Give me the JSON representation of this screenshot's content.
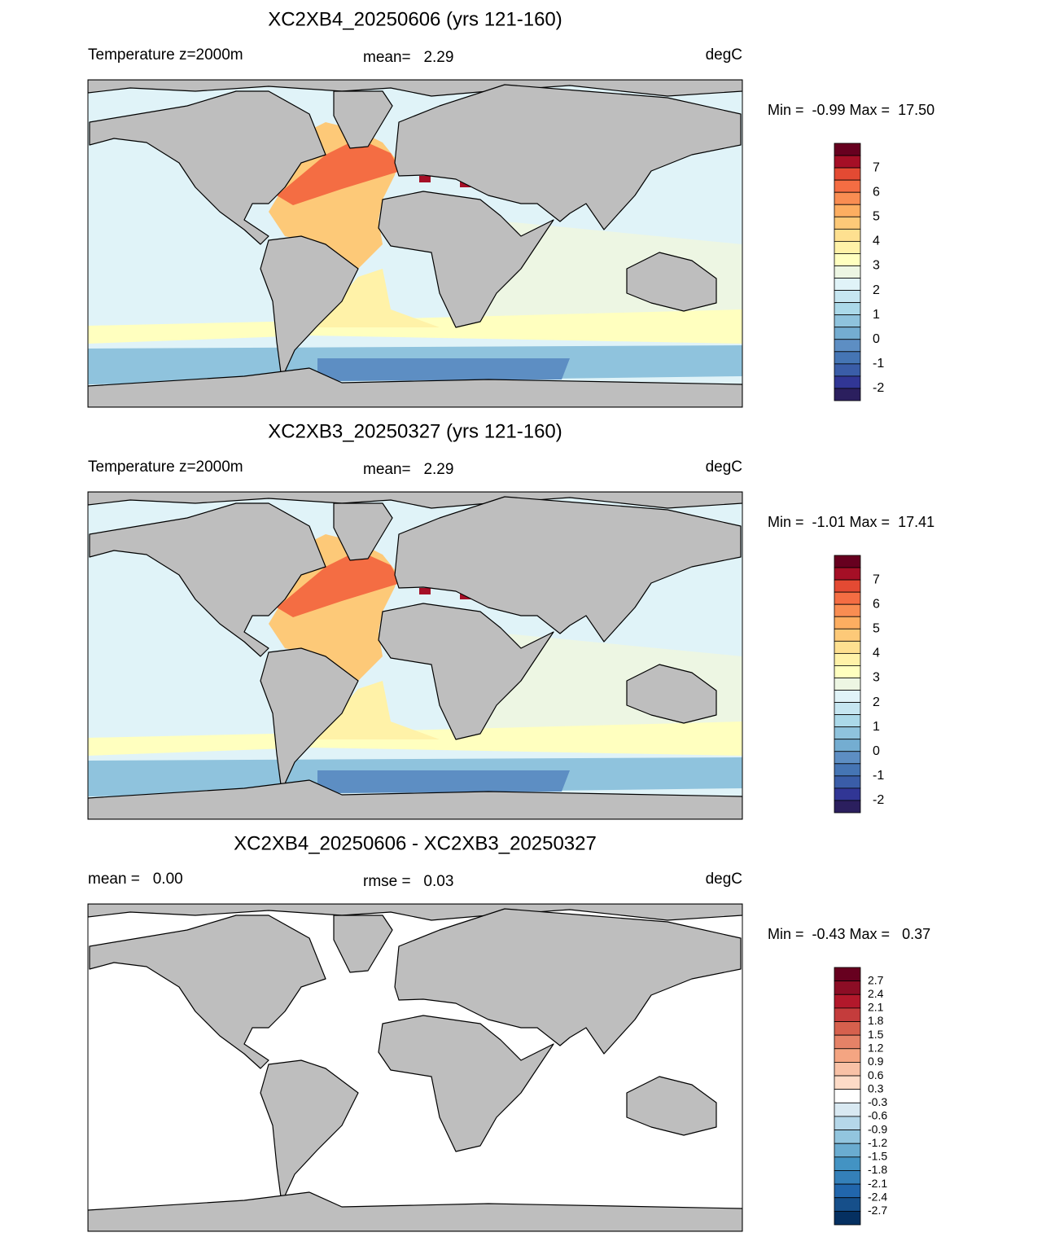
{
  "panels": [
    {
      "title": "XC2XB4_20250606 (yrs 121-160)",
      "left_label": "Temperature z=2000m",
      "center_label": "mean=   2.29",
      "units": "degC",
      "range_label": "Min =  -0.99 Max =  17.50",
      "ocean": "temperature",
      "colorbar": {
        "colors": [
          "#67001f",
          "#a50f26",
          "#e34a33",
          "#f46d43",
          "#f98d52",
          "#fdae61",
          "#fdc978",
          "#fee090",
          "#fff2a8",
          "#ffffbf",
          "#edf6e3",
          "#e0f3f8",
          "#c6e6f1",
          "#abd9e9",
          "#8fc3dd",
          "#74add1",
          "#5d8ec3",
          "#4575b4",
          "#3a5da8",
          "#313695",
          "#2b1f5e"
        ],
        "ticks": [
          7,
          6,
          5,
          4,
          3,
          2,
          1,
          0,
          -1,
          -2
        ]
      }
    },
    {
      "title": "XC2XB3_20250327 (yrs 121-160)",
      "left_label": "Temperature z=2000m",
      "center_label": "mean=   2.29",
      "units": "degC",
      "range_label": "Min =  -1.01 Max =  17.41",
      "ocean": "temperature",
      "colorbar": {
        "colors": [
          "#67001f",
          "#a50f26",
          "#e34a33",
          "#f46d43",
          "#f98d52",
          "#fdae61",
          "#fdc978",
          "#fee090",
          "#fff2a8",
          "#ffffbf",
          "#edf6e3",
          "#e0f3f8",
          "#c6e6f1",
          "#abd9e9",
          "#8fc3dd",
          "#74add1",
          "#5d8ec3",
          "#4575b4",
          "#3a5da8",
          "#313695",
          "#2b1f5e"
        ],
        "ticks": [
          7,
          6,
          5,
          4,
          3,
          2,
          1,
          0,
          -1,
          -2
        ]
      }
    },
    {
      "title": "XC2XB4_20250606 - XC2XB3_20250327",
      "left_label": "mean =   0.00",
      "center_label": "rmse =   0.03",
      "units": "degC",
      "range_label": "Min =  -0.43 Max =   0.37",
      "ocean": "difference",
      "colorbar": {
        "colors": [
          "#67001f",
          "#8c0d25",
          "#b2182b",
          "#c43c3c",
          "#d6604d",
          "#e58267",
          "#f4a582",
          "#f8c1a6",
          "#fddbc7",
          "#ffffff",
          "#d9e9f2",
          "#b5d7e9",
          "#92c5de",
          "#6aacd0",
          "#4393c3",
          "#3480b9",
          "#2166ac",
          "#164f8a",
          "#053061"
        ],
        "ticks": [
          2.7,
          2.4,
          2.1,
          1.8,
          1.5,
          1.2,
          0.9,
          0.6,
          0.3,
          -0.3,
          -0.6,
          -0.9,
          -1.2,
          -1.5,
          -1.8,
          -2.1,
          -2.4,
          -2.7
        ]
      }
    }
  ]
}
